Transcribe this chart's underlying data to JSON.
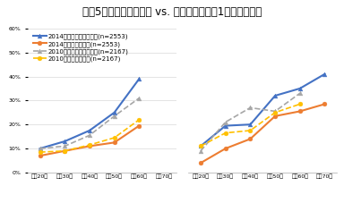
{
  "title": "図表5　新聞・雑誌通販 vs. テレビ通販　年1回以上購入率",
  "title_fontsize": 8.5,
  "categories_male": [
    "男性20代",
    "男性30代",
    "男性40代",
    "男性50代",
    "男性60代",
    "男性70代"
  ],
  "categories_female": [
    "女性20代",
    "女性30代",
    "女性40代",
    "女性50代",
    "女性60代",
    "女性70代"
  ],
  "series": [
    {
      "label": "2014年：新聞・雑誌通販(n=2553)",
      "male_values": [
        10.0,
        13.0,
        17.5,
        25.0,
        39.0,
        null
      ],
      "female_values": [
        11.0,
        19.5,
        20.0,
        32.0,
        35.0,
        41.0
      ],
      "color": "#4472C4",
      "linestyle": "solid",
      "marker": "^",
      "markersize": 3.5,
      "linewidth": 1.5
    },
    {
      "label": "2014年：テレビ通販(n=2553)",
      "male_values": [
        7.0,
        9.0,
        11.0,
        12.5,
        19.5,
        null
      ],
      "female_values": [
        4.0,
        10.0,
        14.0,
        23.5,
        25.5,
        28.5
      ],
      "color": "#ED7D31",
      "linestyle": "solid",
      "marker": "o",
      "markersize": 3.5,
      "linewidth": 1.5
    },
    {
      "label": "2010年：新聞・雑誌通販(n=2167)",
      "male_values": [
        10.0,
        11.0,
        15.5,
        23.5,
        31.0,
        null
      ],
      "female_values": [
        9.0,
        21.0,
        27.0,
        25.5,
        33.0,
        null
      ],
      "color": "#A6A6A6",
      "linestyle": "dashed",
      "marker": "^",
      "markersize": 3.5,
      "linewidth": 1.2
    },
    {
      "label": "2010年：テレビ通販(n=2167)",
      "male_values": [
        8.5,
        9.0,
        11.5,
        14.5,
        22.0,
        null
      ],
      "female_values": [
        11.0,
        16.5,
        17.5,
        25.0,
        28.5,
        null
      ],
      "color": "#FFC000",
      "linestyle": "dashed",
      "marker": "o",
      "markersize": 3.5,
      "linewidth": 1.2
    }
  ],
  "ylim": [
    0,
    60
  ],
  "yticks": [
    0,
    10,
    20,
    30,
    40,
    50,
    60
  ],
  "background_color": "#FFFFFF",
  "grid_color": "#D9D9D9",
  "legend_fontsize": 5.0,
  "tick_fontsize": 4.5
}
